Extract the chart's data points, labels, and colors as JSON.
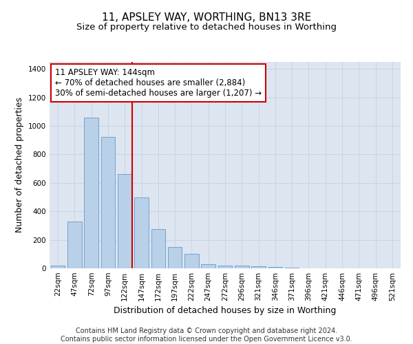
{
  "title": "11, APSLEY WAY, WORTHING, BN13 3RE",
  "subtitle": "Size of property relative to detached houses in Worthing",
  "xlabel": "Distribution of detached houses by size in Worthing",
  "ylabel": "Number of detached properties",
  "bin_labels": [
    "22sqm",
    "47sqm",
    "72sqm",
    "97sqm",
    "122sqm",
    "147sqm",
    "172sqm",
    "197sqm",
    "222sqm",
    "247sqm",
    "272sqm",
    "296sqm",
    "321sqm",
    "346sqm",
    "371sqm",
    "396sqm",
    "421sqm",
    "446sqm",
    "471sqm",
    "496sqm",
    "521sqm"
  ],
  "bar_values": [
    20,
    330,
    1060,
    925,
    660,
    500,
    275,
    150,
    100,
    30,
    20,
    20,
    15,
    10,
    5,
    0,
    0,
    0,
    0,
    0,
    0
  ],
  "bar_color": "#b8d0e8",
  "bar_edge_color": "#6699cc",
  "vline_x": 4.44,
  "vline_color": "#cc0000",
  "annotation_text": "11 APSLEY WAY: 144sqm\n← 70% of detached houses are smaller (2,884)\n30% of semi-detached houses are larger (1,207) →",
  "annotation_box_color": "#ffffff",
  "annotation_box_edge_color": "#cc0000",
  "ylim": [
    0,
    1450
  ],
  "yticks": [
    0,
    200,
    400,
    600,
    800,
    1000,
    1200,
    1400
  ],
  "grid_color": "#c8d4e4",
  "background_color": "#dde5f0",
  "footer_text": "Contains HM Land Registry data © Crown copyright and database right 2024.\nContains public sector information licensed under the Open Government Licence v3.0.",
  "title_fontsize": 11,
  "subtitle_fontsize": 9.5,
  "axis_label_fontsize": 9,
  "tick_fontsize": 7.5,
  "annotation_fontsize": 8.5,
  "footer_fontsize": 7
}
